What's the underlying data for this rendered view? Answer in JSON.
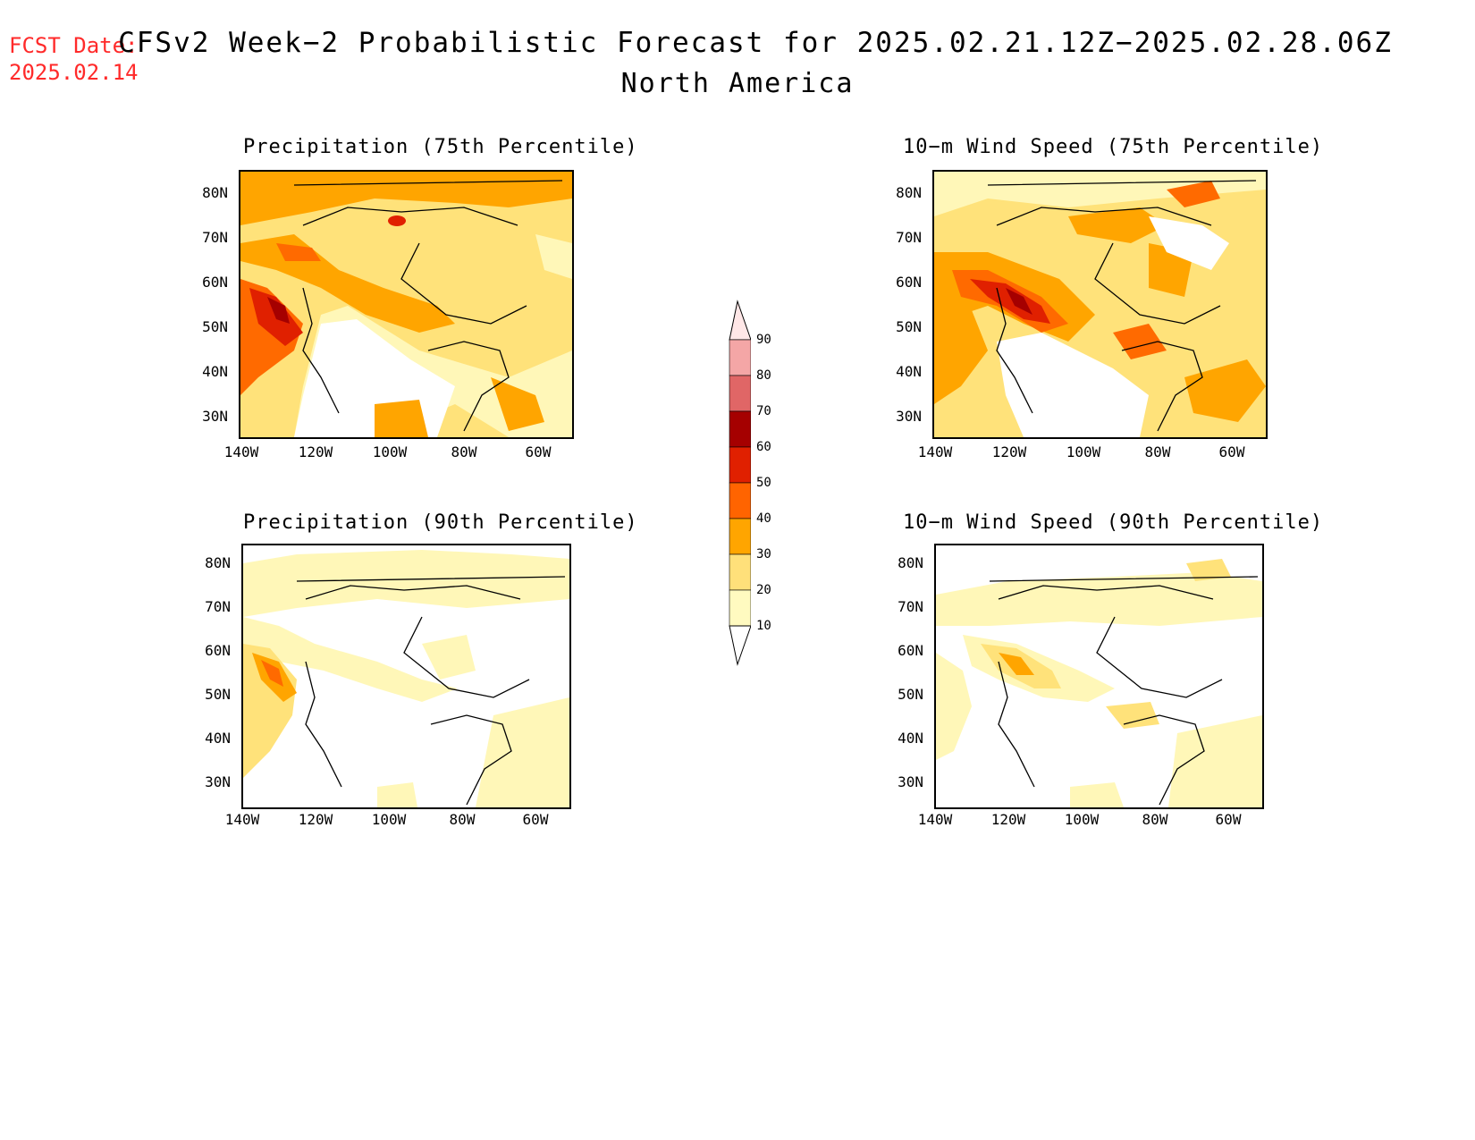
{
  "header": {
    "fcst_line1": "FCST Date:",
    "fcst_line2": "2025.02.14",
    "title": "CFSv2 Week−2 Probabilistic Forecast for 2025.02.21.12Z−2025.02.28.06Z",
    "subtitle": "North America"
  },
  "panels": {
    "p75": {
      "title": "Precipitation (75th Percentile)"
    },
    "w75": {
      "title": "10−m Wind Speed (75th Percentile)"
    },
    "p90": {
      "title": "Precipitation (90th Percentile)"
    },
    "w90": {
      "title": "10−m Wind Speed (90th Percentile)"
    }
  },
  "axes": {
    "lat_labels": [
      "80N",
      "70N",
      "60N",
      "50N",
      "40N",
      "30N"
    ],
    "lon_labels": [
      "140W",
      "120W",
      "100W",
      "80W",
      "60W"
    ]
  },
  "colorbar": {
    "labels": [
      "90",
      "80",
      "70",
      "60",
      "50",
      "40",
      "30",
      "20",
      "10"
    ],
    "colors": [
      "#ffe7e7",
      "#f4a6a6",
      "#e06666",
      "#a50000",
      "#e02000",
      "#ff6400",
      "#ffa500",
      "#ffe07a",
      "#fffac0"
    ]
  },
  "palette": {
    "c10": "#fff7b8",
    "c20": "#ffe27a",
    "c30": "#ffa500",
    "c40": "#ff6a00",
    "c50": "#e02000",
    "c60": "#a50000",
    "land_outline": "#000000"
  }
}
